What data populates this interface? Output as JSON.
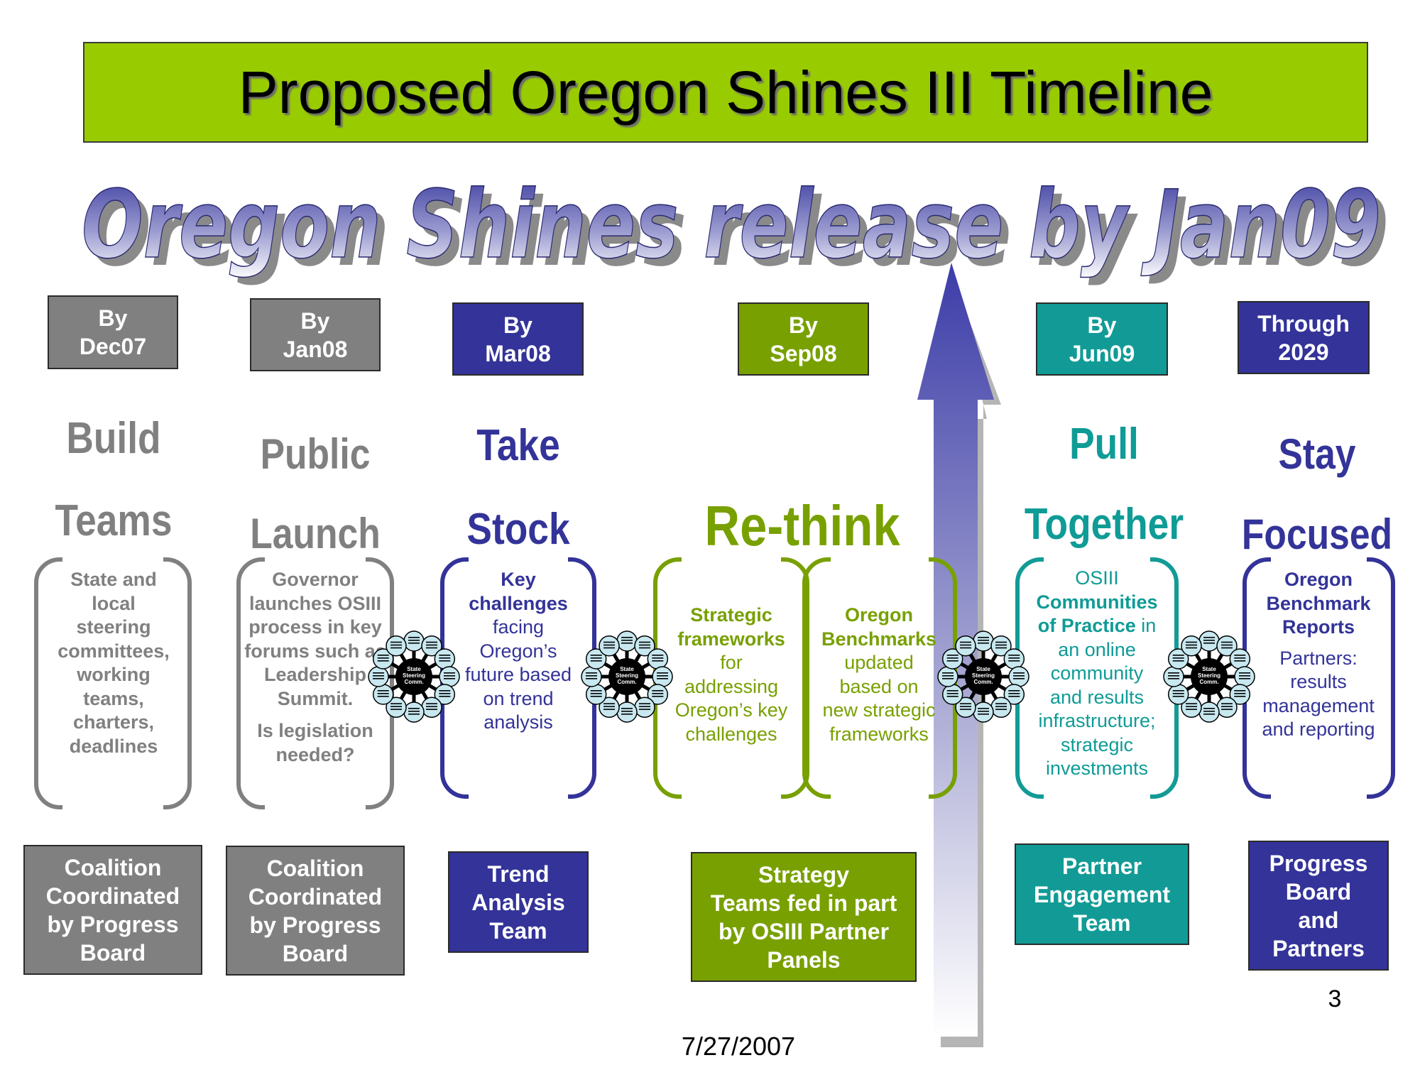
{
  "title": "Proposed Oregon Shines III Timeline",
  "release_banner": "Oregon Shines release by Jan09",
  "stages": [
    {
      "date_line1": "By",
      "date_line2": "Dec07",
      "word1": "Build",
      "word2": "Teams",
      "body": [
        "State and",
        "local",
        "steering",
        "committees,",
        "working",
        "teams,",
        "charters,",
        "deadlines"
      ],
      "team": [
        "Coalition",
        "Coordinated",
        "by Progress",
        "Board"
      ]
    },
    {
      "date_line1": "By",
      "date_line2": "Jan08",
      "word1": "Public",
      "word2": "Launch",
      "body": [
        "Governor",
        "launches OSIII",
        "process in key",
        "forums such as",
        "Leadership",
        "Summit."
      ],
      "body_extra": [
        "Is legislation",
        "needed?"
      ],
      "team": [
        "Coalition",
        "Coordinated",
        "by Progress",
        "Board"
      ]
    },
    {
      "date_line1": "By",
      "date_line2": "Mar08",
      "word1": "Take",
      "word2": "Stock",
      "body_bold": [
        "Key",
        "challenges"
      ],
      "body": [
        "facing",
        "Oregon’s",
        "future based",
        "on trend",
        "analysis"
      ],
      "team": [
        "Trend",
        "Analysis",
        "Team"
      ]
    },
    {
      "date_line1": "By",
      "date_line2": "Sep08",
      "word1": "Re-think",
      "body_a_bold": [
        "Strategic",
        "frameworks"
      ],
      "body_a": [
        "for",
        "addressing",
        "Oregon’s key",
        "challenges"
      ],
      "body_b_bold": [
        "Oregon",
        "Benchmarks"
      ],
      "body_b": [
        "updated",
        "based on",
        "new strategic",
        "frameworks"
      ],
      "team": [
        "Strategy",
        "Teams fed in part",
        "by OSIII Partner",
        "Panels"
      ]
    },
    {
      "date_line1": "By",
      "date_line2": "Jun09",
      "word1": "Pull",
      "word2": "Together",
      "body_top": "OSIII",
      "body_bold": [
        "Communities",
        "of Practice"
      ],
      "body_inline_after": "in",
      "body": [
        "an online",
        "community",
        "and results",
        "infrastructure;",
        "strategic",
        "investments"
      ],
      "team": [
        "Partner",
        "Engagement",
        "Team"
      ]
    },
    {
      "date_line1": "Through",
      "date_line2": "2029",
      "word1": "Stay",
      "word2": "Focused",
      "body_bold": [
        "Oregon",
        "Benchmark",
        "Reports"
      ],
      "body": [
        "Partners:",
        "results",
        "management",
        "and reporting"
      ],
      "team": [
        "Progress",
        "Board",
        "and",
        "Partners"
      ]
    }
  ],
  "steering_diagram": {
    "center_label": [
      "State",
      "Steering",
      "Comm."
    ]
  },
  "page_number": "3",
  "footer_date": "7/27/2007",
  "colors": {
    "banner": "#99cc00",
    "gray": "#808080",
    "blue": "#333399",
    "green": "#78a000",
    "teal": "#129b96"
  }
}
